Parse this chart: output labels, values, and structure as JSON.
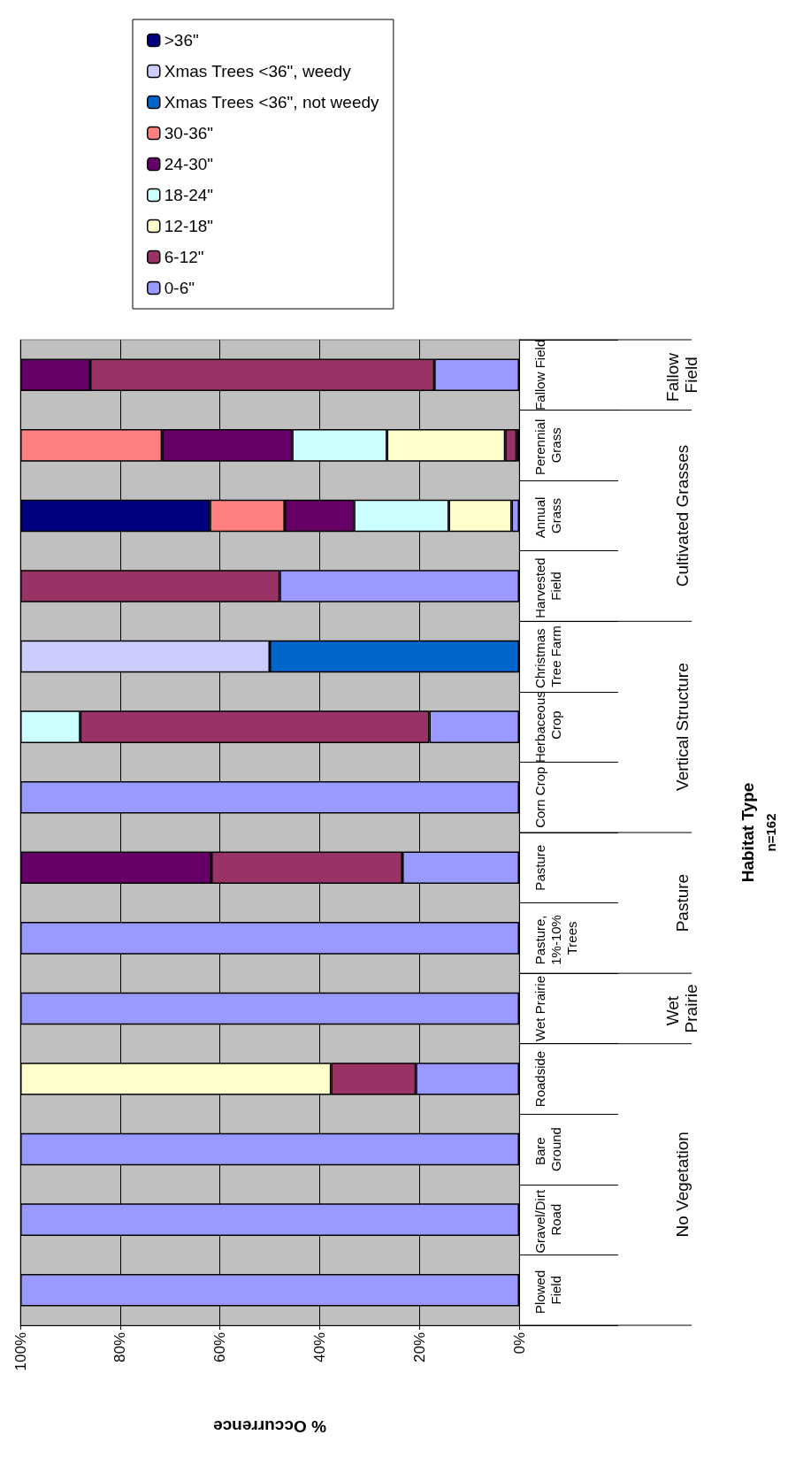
{
  "chart_data": {
    "type": "bar",
    "stacked": true,
    "orientation": "horizontal",
    "xlabel": "% Occurrence",
    "categories": [
      "Fallow Field",
      "Perennial Grass",
      "Annual Grass",
      "Harvested Field",
      "Christmas Tree Farm",
      "Herbaceous Crop",
      "Corn Crop",
      "Pasture",
      "Pasture, 1%-10% Trees",
      "Wet Prairie",
      "Roadside",
      "Bare Ground",
      "Gravel/Dirt Road",
      "Plowed Field"
    ],
    "series": [
      {
        "name": "0-6\"",
        "color": "#9999ff",
        "values": [
          17,
          0.5,
          1.5,
          48,
          null,
          18,
          100,
          23.4,
          100,
          100,
          20.7,
          100,
          100,
          100
        ]
      },
      {
        "name": "6-12\"",
        "color": "#993366",
        "values": [
          69,
          2.3,
          null,
          52,
          null,
          70,
          null,
          38.3,
          null,
          null,
          17,
          null,
          null,
          null
        ]
      },
      {
        "name": "12-18\"",
        "color": "#ffffcc",
        "values": [
          null,
          23.7,
          12.6,
          null,
          null,
          null,
          null,
          null,
          null,
          null,
          62.3,
          null,
          null,
          null
        ]
      },
      {
        "name": "18-24\"",
        "color": "#ccffff",
        "values": [
          null,
          19,
          19,
          null,
          null,
          12,
          null,
          null,
          null,
          null,
          null,
          null,
          null,
          null
        ]
      },
      {
        "name": "24-30\"",
        "color": "#660066",
        "values": [
          14,
          26.1,
          13.9,
          null,
          null,
          null,
          null,
          38.3,
          null,
          null,
          null,
          null,
          null,
          null
        ]
      },
      {
        "name": "30-36\"",
        "color": "#ff8080",
        "values": [
          null,
          28.4,
          15,
          null,
          null,
          null,
          null,
          null,
          null,
          null,
          null,
          null,
          null,
          null
        ]
      },
      {
        "name": "Xmas Trees <36\", not weedy",
        "color": "#0066cc",
        "values": [
          null,
          null,
          null,
          null,
          50,
          null,
          null,
          null,
          null,
          null,
          null,
          null,
          null,
          null
        ]
      },
      {
        "name": "Xmas Trees <36\", weedy",
        "color": "#ccccff",
        "values": [
          null,
          null,
          null,
          null,
          50,
          null,
          null,
          null,
          null,
          null,
          null,
          null,
          null,
          null
        ]
      },
      {
        "name": ">36\"",
        "color": "#000080",
        "values": [
          null,
          null,
          38,
          null,
          null,
          null,
          null,
          null,
          null,
          null,
          null,
          null,
          null,
          null
        ]
      }
    ],
    "xlim": [
      100,
      0
    ],
    "xticks": [
      {
        "value": 0,
        "label": "0%"
      },
      {
        "value": 20,
        "label": "20%"
      },
      {
        "value": 40,
        "label": "40%"
      },
      {
        "value": 60,
        "label": "60%"
      },
      {
        "value": 80,
        "label": "80%"
      },
      {
        "value": 100,
        "label": "100%"
      }
    ],
    "grid": "x",
    "legend": "top",
    "annotations": [
      "Fallow Field",
      "Cultivated Grasses",
      "Vertical Structure",
      "Pasture",
      "Wet Prairie",
      "No Vegetation",
      "Habitat Type",
      "n=162"
    ]
  }
}
